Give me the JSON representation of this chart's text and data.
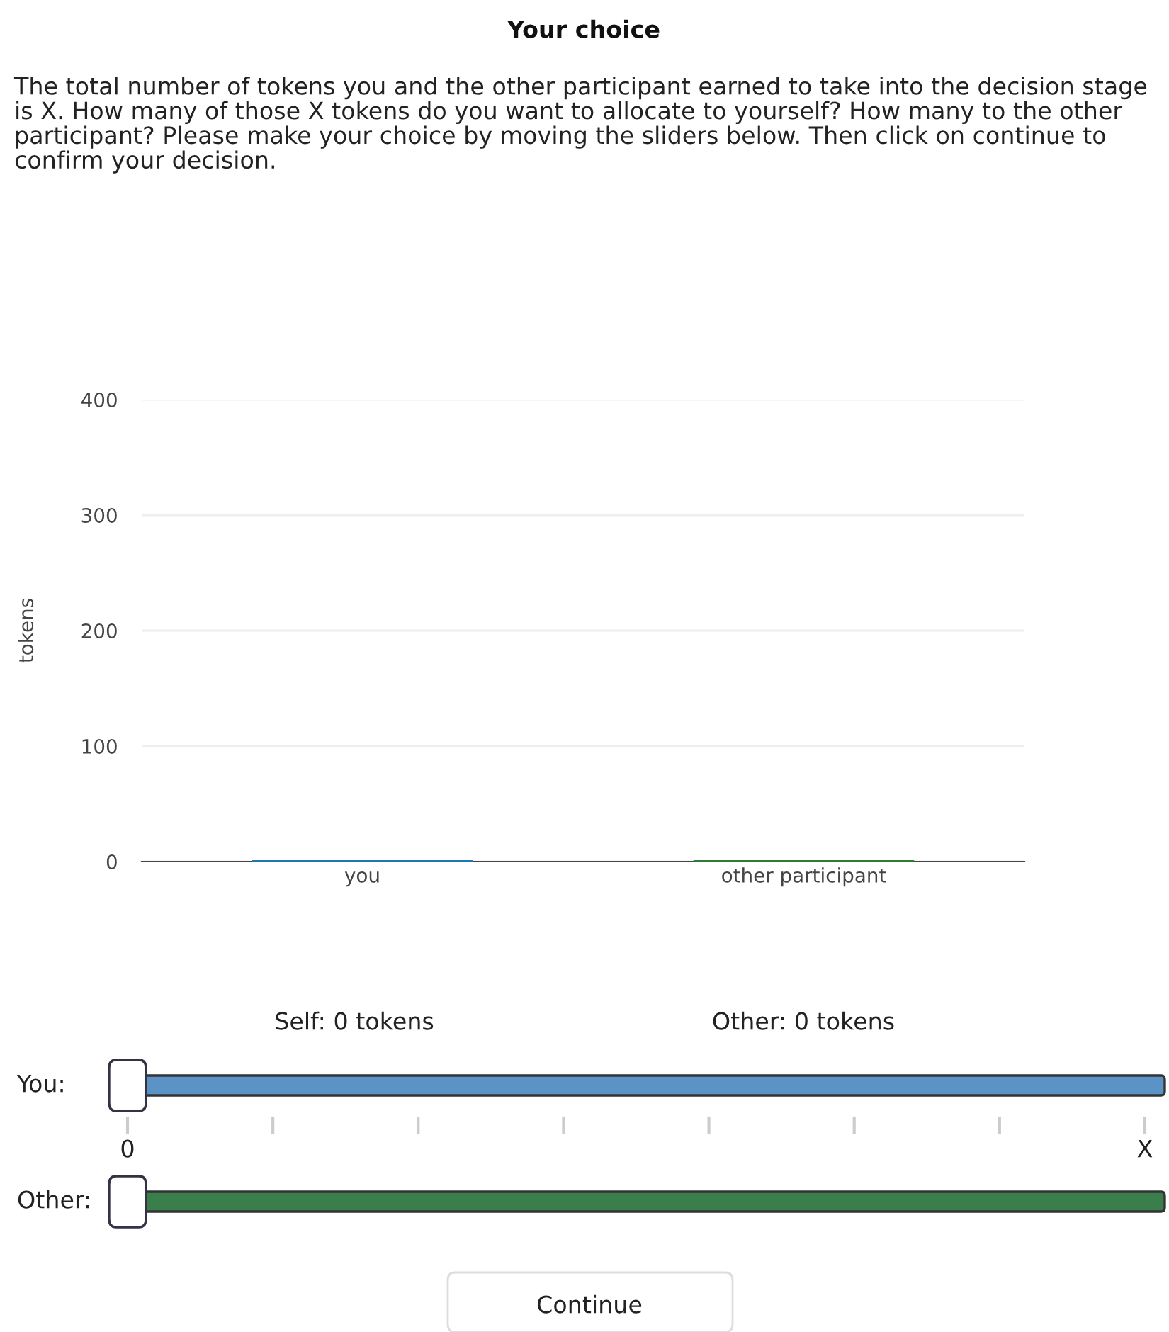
{
  "chart_data": {
    "type": "bar",
    "title": "Your choice",
    "categories": [
      "you",
      "other participant"
    ],
    "colors": [
      "#1f77b4",
      "#2e7d32"
    ],
    "values": [
      0,
      0
    ],
    "ylabel": "tokens",
    "ylim": [
      0,
      400
    ],
    "yticks": [
      0,
      100,
      200,
      300,
      400
    ],
    "grid": "y",
    "legend": false,
    "annotations": [
      "The total number of tokens you and the other participant earned to take into the decision stage is X. How many of those X tokens do you want to allocate to yourself? How many to the other participant? Please make your choice by moving the sliders below. Then click on continue to confirm your decision.",
      "Self: 0 tokens",
      "Other: 0 tokens",
      "You:",
      "0",
      "X",
      "Other:",
      "Continue"
    ]
  }
}
